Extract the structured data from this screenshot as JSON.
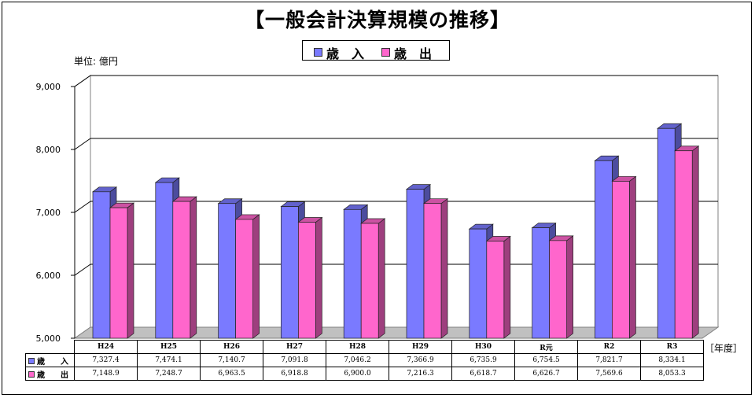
{
  "title": "【一般会計決算規模の推移】",
  "unit_label": "単位: 億円",
  "year_label": "［年度］",
  "colors": {
    "revenue": "#7a7aff",
    "expenditure": "#ff66cc",
    "gridline": "#000000",
    "wall": "#ffffff",
    "floor": "#c0c0c0"
  },
  "legend": {
    "revenue": "歳　入",
    "expenditure": "歳　出"
  },
  "table": {
    "revenue_head": "歳　　入",
    "expenditure_head": "歳　　出"
  },
  "chart_data": {
    "type": "bar",
    "title": "【一般会計決算規模の推移】",
    "xlabel": "［年度］",
    "ylabel": "単位: 億円",
    "ylim": [
      5000,
      9000
    ],
    "y_ticks": [
      "5,000",
      "6,000",
      "7,000",
      "8,000",
      "9,000"
    ],
    "grid": true,
    "legend_position": "top-center",
    "categories": [
      "H24",
      "H25",
      "H26",
      "H27",
      "H28",
      "H29",
      "H30",
      "R元",
      "R2",
      "R3"
    ],
    "series": [
      {
        "name": "歳　入",
        "values": [
          7327.4,
          7474.1,
          7140.7,
          7091.8,
          7046.2,
          7366.9,
          6735.9,
          6754.5,
          7821.7,
          8334.1
        ],
        "labels": [
          "7,327.4",
          "7,474.1",
          "7,140.7",
          "7,091.8",
          "7,046.2",
          "7,366.9",
          "6,735.9",
          "6,754.5",
          "7,821.7",
          "8,334.1"
        ]
      },
      {
        "name": "歳　出",
        "values": [
          7148.9,
          7248.7,
          6963.5,
          6918.8,
          6900.0,
          7216.3,
          6618.7,
          6626.7,
          7569.6,
          8053.3
        ],
        "labels": [
          "7,148.9",
          "7,248.7",
          "6,963.5",
          "6,918.8",
          "6,900.0",
          "7,216.3",
          "6,618.7",
          "6,626.7",
          "7,569.6",
          "8,053.3"
        ]
      }
    ]
  }
}
